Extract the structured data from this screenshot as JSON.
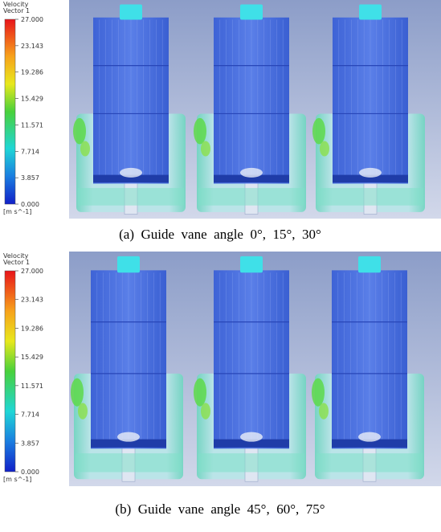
{
  "panels": [
    {
      "legend": {
        "title": "Velocity",
        "subtitle": "Vector 1",
        "ticks": [
          "27.000",
          "23.143",
          "19.286",
          "15.429",
          "11.571",
          "7.714",
          "3.857",
          "0.000"
        ],
        "unit": "[m s^-1]"
      },
      "caption": "(a)  Guide  vane  angle  0°,  15°,  30°"
    },
    {
      "legend": {
        "title": "Velocity",
        "subtitle": "Vector 1",
        "ticks": [
          "27.000",
          "23.143",
          "19.286",
          "15.429",
          "11.571",
          "7.714",
          "3.857",
          "0.000"
        ],
        "unit": "[m s^-1]"
      },
      "caption": "(b)  Guide  vane  angle  45°,  60°,  75°"
    }
  ]
}
